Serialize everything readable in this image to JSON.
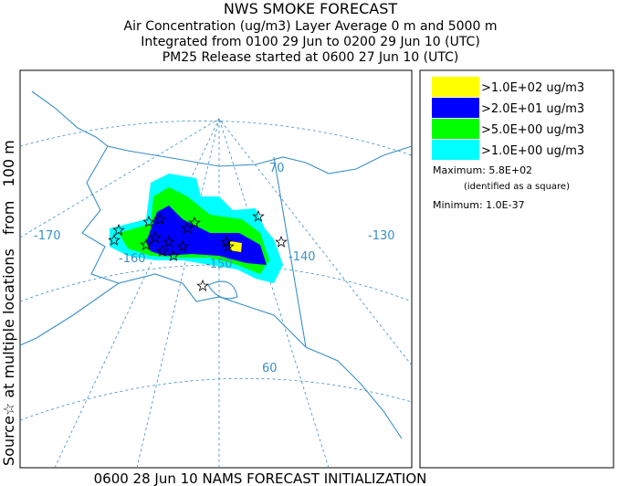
{
  "header": {
    "title": "NWS SMOKE FORECAST",
    "lines": [
      "Air Concentration (ug/m3) Layer Average    0 m and  5000 m",
      "Integrated from 0100 29 Jun to 0200 29 Jun 10 (UTC)",
      "PM25 Release started at 0600 27 Jun 10 (UTC)"
    ]
  },
  "left_label": "Source☆ at multiple locations   from   100 m",
  "footer": "0600 28 Jun 10 NAMS FORECAST INITIALIZATION",
  "map": {
    "labels": [
      "70",
      "-170",
      "-160",
      "-150",
      "-140",
      "-130",
      "60"
    ]
  },
  "legend": {
    "items": [
      {
        "label": ">1.0E+02 ug/m3",
        "color": "#ffff00"
      },
      {
        "label": ">2.0E+01 ug/m3",
        "color": "#0000ff"
      },
      {
        "label": ">5.0E+00 ug/m3",
        "color": "#00ff00"
      },
      {
        "label": ">1.0E+00 ug/m3",
        "color": "#00ffff"
      }
    ],
    "maximum": "Maximum: 5.8E+02",
    "maximum_note": "(identified as a square)",
    "minimum": "Minimum: 1.0E-37"
  }
}
